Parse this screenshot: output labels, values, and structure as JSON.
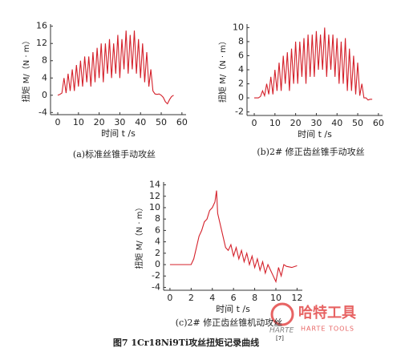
{
  "chart_data": [
    {
      "type": "line",
      "caption": "(a)标准丝锥手动攻丝",
      "xlabel": "时间 t /s",
      "ylabel": "扭矩 M/（N · m）",
      "color": "#d4202a",
      "xlim": [
        -3.5,
        62
      ],
      "ylim": [
        -4.5,
        16.5
      ],
      "xticks": [
        0,
        10,
        20,
        30,
        40,
        50,
        60
      ],
      "yticks": [
        -4,
        0,
        4,
        8,
        12,
        16
      ],
      "x": [
        0,
        1,
        2,
        3,
        4,
        5,
        6,
        7,
        8,
        9,
        10,
        11,
        12,
        13,
        14,
        15,
        16,
        17,
        18,
        19,
        20,
        21,
        22,
        23,
        24,
        25,
        26,
        27,
        28,
        29,
        30,
        31,
        32,
        33,
        34,
        35,
        36,
        37,
        38,
        39,
        40,
        41,
        42,
        43,
        44,
        45,
        46,
        47,
        48,
        49,
        50,
        51,
        52,
        53,
        54,
        55,
        56
      ],
      "values": [
        0,
        0.2,
        0.5,
        4,
        0.5,
        5,
        1,
        6,
        1,
        7,
        2,
        8,
        2,
        9,
        3,
        9,
        2,
        10,
        3,
        11,
        4,
        12,
        3,
        12,
        5,
        13,
        4,
        12,
        5,
        14,
        4,
        13,
        6,
        15,
        5,
        14,
        6,
        15,
        5,
        13,
        4,
        12,
        3,
        10,
        2,
        6,
        1,
        0.3,
        0.2,
        0.3,
        0,
        -0.5,
        -1.5,
        -2,
        -1,
        -0.3,
        0
      ]
    },
    {
      "type": "line",
      "caption": "(b)2# 修正齿丝锥手动攻丝",
      "xlabel": "时间 t /s",
      "ylabel": "扭矩 M/（N · m）",
      "color": "#d4202a",
      "xlim": [
        -3.5,
        62
      ],
      "ylim": [
        -2.5,
        10.5
      ],
      "xticks": [
        0,
        10,
        20,
        30,
        40,
        50,
        60
      ],
      "yticks": [
        -2,
        0,
        2,
        4,
        6,
        8,
        10
      ],
      "x": [
        0,
        1,
        2,
        3,
        4,
        5,
        6,
        7,
        8,
        9,
        10,
        11,
        12,
        13,
        14,
        15,
        16,
        17,
        18,
        19,
        20,
        21,
        22,
        23,
        24,
        25,
        26,
        27,
        28,
        29,
        30,
        31,
        32,
        33,
        34,
        35,
        36,
        37,
        38,
        39,
        40,
        41,
        42,
        43,
        44,
        45,
        46,
        47,
        48,
        49,
        50,
        51,
        52,
        53,
        54,
        55,
        56,
        57
      ],
      "values": [
        0,
        0,
        0,
        0.2,
        1,
        0.3,
        2,
        0.5,
        3,
        0.5,
        4,
        1,
        5,
        1,
        6,
        2,
        6.5,
        1,
        7,
        2,
        8,
        2,
        8,
        3,
        8.5,
        2,
        9,
        3,
        9,
        3,
        9.5,
        4,
        9,
        4,
        10,
        3,
        9,
        4,
        9,
        3,
        8.5,
        2,
        8,
        2,
        8.5,
        1,
        7,
        1,
        6,
        0.5,
        5,
        0.3,
        2,
        0,
        0,
        -0.3,
        -0.2,
        -0.2
      ]
    },
    {
      "type": "line",
      "caption": "(c)2# 修正齿丝锥机动攻丝",
      "xlabel": "时间 t /s",
      "ylabel": "扭矩 M/（N · m）",
      "color": "#d4202a",
      "xlim": [
        -0.6,
        12.5
      ],
      "ylim": [
        -4.5,
        14.5
      ],
      "xticks": [
        0,
        2,
        4,
        6,
        8,
        10,
        12
      ],
      "yticks": [
        -4,
        -2,
        0,
        2,
        4,
        6,
        8,
        10,
        12,
        14
      ],
      "x": [
        0,
        0.5,
        1,
        1.5,
        2,
        2.25,
        2.5,
        2.75,
        3,
        3.25,
        3.5,
        3.75,
        4,
        4.25,
        4.4,
        4.5,
        4.75,
        5,
        5.25,
        5.5,
        5.75,
        6,
        6.25,
        6.5,
        6.75,
        7,
        7.25,
        7.5,
        7.75,
        8,
        8.25,
        8.5,
        8.75,
        9,
        9.25,
        9.5,
        9.75,
        10,
        10.25,
        10.5,
        10.75,
        11,
        11.5,
        12
      ],
      "values": [
        0,
        0,
        0,
        0,
        0,
        1,
        3,
        5,
        6,
        7.5,
        8,
        9.5,
        10,
        11,
        13,
        9,
        7,
        5,
        3,
        2.5,
        3.5,
        1.5,
        3,
        1,
        2.5,
        0.5,
        2,
        0,
        1.5,
        -0.5,
        1,
        -1,
        0.5,
        -1.5,
        0,
        -1,
        -2,
        -3,
        -0.5,
        -2,
        0,
        -0.3,
        -0.5,
        -0.2
      ]
    }
  ],
  "figure_caption": "图7  1Cr18Ni9Ti攻丝扭矩记录曲线",
  "figure_ref": "[7]",
  "watermark": {
    "brand": "哈特工具",
    "brand_en": "HARTE TOOLS",
    "mark": "HARTE"
  }
}
